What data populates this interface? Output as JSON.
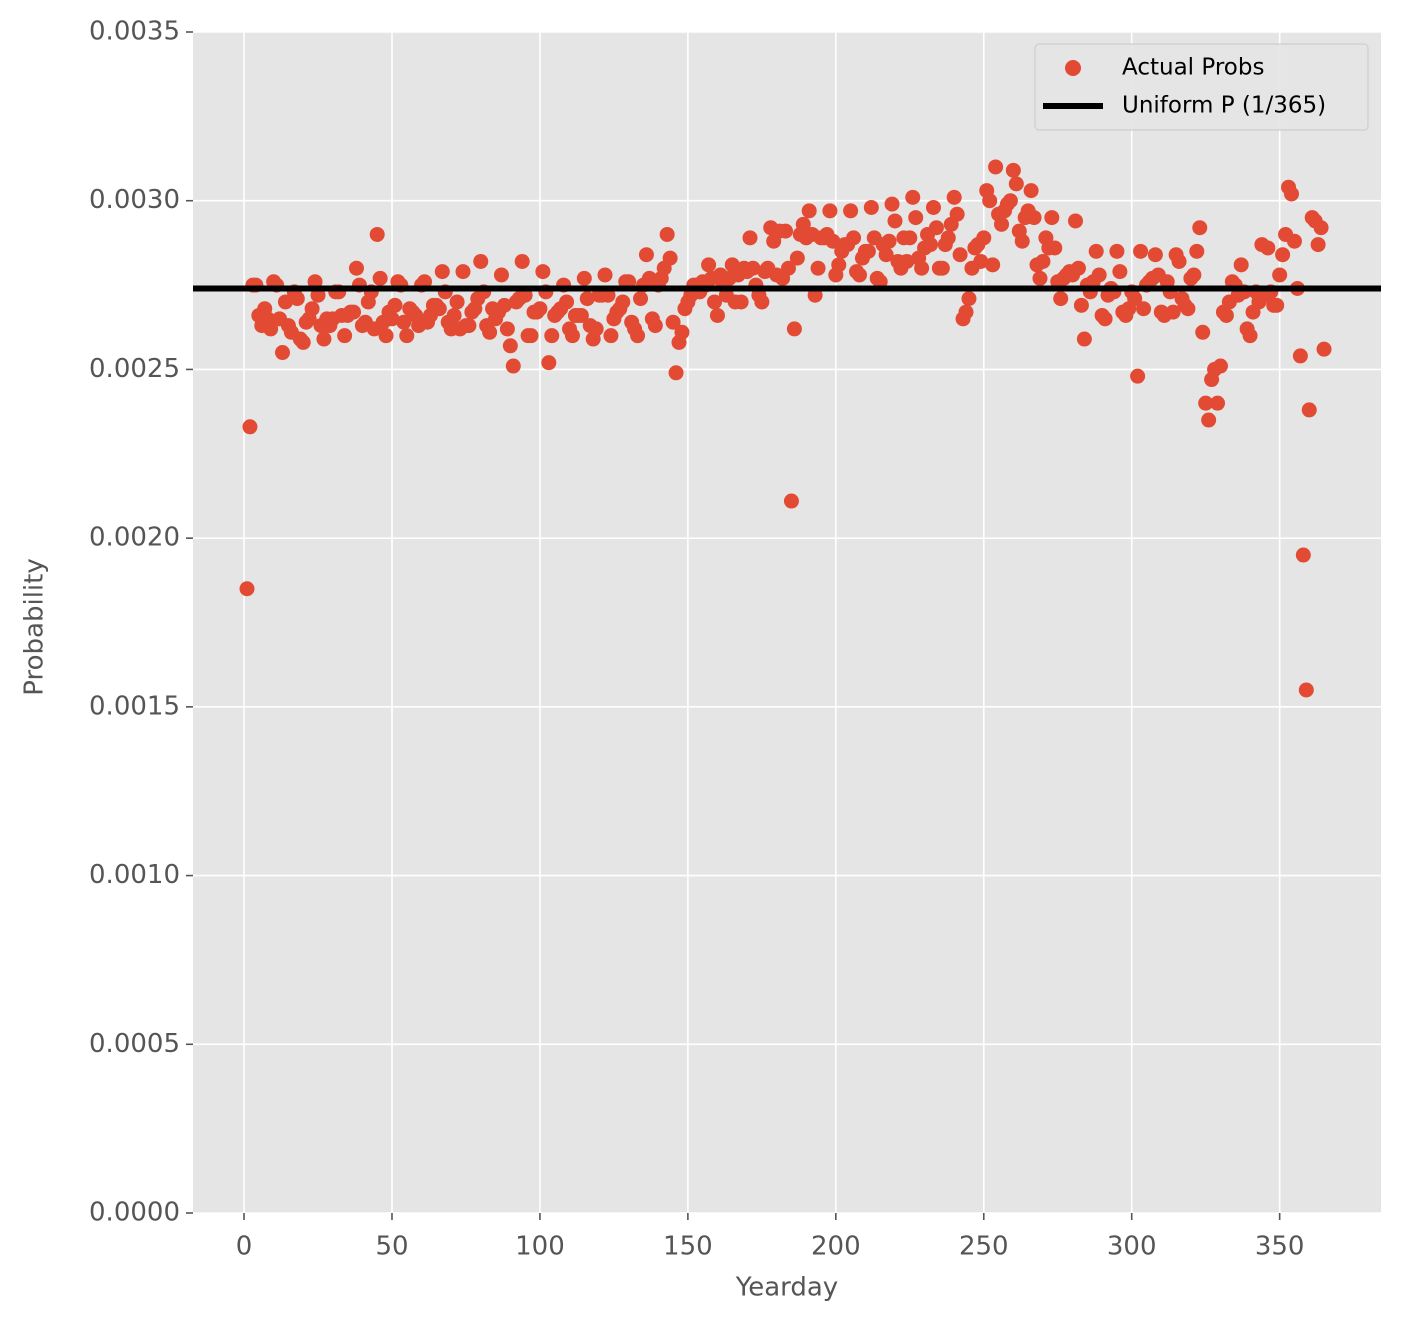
{
  "chart_data": {
    "type": "scatter",
    "x_label": "Yearday",
    "y_label": "Probability",
    "xlim": [
      -17.25,
      384.25
    ],
    "xticks": [
      0,
      50,
      100,
      150,
      200,
      250,
      300,
      350
    ],
    "ylim": [
      0,
      0.0035
    ],
    "yticks": [
      {
        "value": 0,
        "label": "0.0000"
      },
      0.0005,
      {
        "value": 0.001,
        "label": "0.0010"
      },
      0.0015,
      {
        "value": 0.002,
        "label": "0.0020"
      },
      0.0025,
      {
        "value": 0.003,
        "label": "0.0030"
      },
      0.0035
    ],
    "grid": true,
    "legend": "upper right",
    "hline": {
      "name": "Uniform P (1/365)",
      "value": 0.0027397,
      "color": "#000000"
    },
    "series": [
      {
        "name": "Actual Probs",
        "color": "#E24A33",
        "x": [
          1,
          2,
          3,
          4,
          5,
          6,
          7,
          8,
          9,
          10,
          11,
          12,
          13,
          14,
          15,
          16,
          17,
          18,
          19,
          20,
          21,
          22,
          23,
          24,
          25,
          26,
          27,
          28,
          29,
          30,
          31,
          32,
          33,
          34,
          35,
          36,
          37,
          38,
          39,
          40,
          41,
          42,
          43,
          44,
          45,
          46,
          47,
          48,
          49,
          50,
          51,
          52,
          53,
          54,
          55,
          56,
          57,
          58,
          59,
          60,
          61,
          62,
          63,
          64,
          65,
          66,
          67,
          68,
          69,
          70,
          71,
          72,
          73,
          74,
          75,
          76,
          77,
          78,
          79,
          80,
          81,
          82,
          83,
          84,
          85,
          86,
          87,
          88,
          89,
          90,
          91,
          92,
          93,
          94,
          95,
          96,
          97,
          98,
          99,
          100,
          101,
          102,
          103,
          104,
          105,
          106,
          107,
          108,
          109,
          110,
          111,
          112,
          113,
          114,
          115,
          116,
          117,
          118,
          119,
          120,
          121,
          122,
          123,
          124,
          125,
          126,
          127,
          128,
          129,
          130,
          131,
          132,
          133,
          134,
          135,
          136,
          137,
          138,
          139,
          140,
          141,
          142,
          143,
          144,
          145,
          146,
          147,
          148,
          149,
          150,
          151,
          152,
          153,
          154,
          155,
          156,
          157,
          158,
          159,
          160,
          161,
          162,
          163,
          164,
          165,
          166,
          167,
          168,
          169,
          170,
          171,
          172,
          173,
          174,
          175,
          176,
          177,
          178,
          179,
          180,
          181,
          182,
          183,
          184,
          185,
          186,
          187,
          188,
          189,
          190,
          191,
          192,
          193,
          194,
          195,
          196,
          197,
          198,
          199,
          200,
          201,
          202,
          203,
          204,
          205,
          206,
          207,
          208,
          209,
          210,
          211,
          212,
          213,
          214,
          215,
          216,
          217,
          218,
          219,
          220,
          221,
          222,
          223,
          224,
          225,
          226,
          227,
          228,
          229,
          230,
          231,
          232,
          233,
          234,
          235,
          236,
          237,
          238,
          239,
          240,
          241,
          242,
          243,
          244,
          245,
          246,
          247,
          248,
          249,
          250,
          251,
          252,
          253,
          254,
          255,
          256,
          257,
          258,
          259,
          260,
          261,
          262,
          263,
          264,
          265,
          266,
          267,
          268,
          269,
          270,
          271,
          272,
          273,
          274,
          275,
          276,
          277,
          278,
          279,
          280,
          281,
          282,
          283,
          284,
          285,
          286,
          287,
          288,
          289,
          290,
          291,
          292,
          293,
          294,
          295,
          296,
          297,
          298,
          299,
          300,
          301,
          302,
          303,
          304,
          305,
          306,
          307,
          308,
          309,
          310,
          311,
          312,
          313,
          314,
          315,
          316,
          317,
          318,
          319,
          320,
          321,
          322,
          323,
          324,
          325,
          326,
          327,
          328,
          329,
          330,
          331,
          332,
          333,
          334,
          335,
          336,
          337,
          338,
          339,
          340,
          341,
          342,
          343,
          344,
          345,
          346,
          347,
          348,
          349,
          350,
          351,
          352,
          353,
          354,
          355,
          356,
          357,
          358,
          359,
          360,
          361,
          362,
          363,
          364,
          365
        ],
        "values": [
          0.00185,
          0.00233,
          0.00275,
          0.00275,
          0.00266,
          0.00263,
          0.00268,
          0.00265,
          0.00262,
          0.00276,
          0.00275,
          0.00265,
          0.00255,
          0.0027,
          0.00263,
          0.00261,
          0.00273,
          0.00271,
          0.00259,
          0.00258,
          0.00264,
          0.00265,
          0.00268,
          0.00276,
          0.00272,
          0.00263,
          0.00259,
          0.00265,
          0.00263,
          0.00265,
          0.00273,
          0.00273,
          0.00266,
          0.0026,
          0.00266,
          0.00267,
          0.00267,
          0.0028,
          0.00275,
          0.00263,
          0.00264,
          0.0027,
          0.00273,
          0.00262,
          0.0029,
          0.00277,
          0.00264,
          0.0026,
          0.00267,
          0.00265,
          0.00269,
          0.00276,
          0.00275,
          0.00264,
          0.0026,
          0.00268,
          0.00267,
          0.00266,
          0.00263,
          0.00275,
          0.00276,
          0.00264,
          0.00266,
          0.00269,
          0.00269,
          0.00268,
          0.00279,
          0.00273,
          0.00264,
          0.00262,
          0.00266,
          0.0027,
          0.00262,
          0.00279,
          0.00263,
          0.00263,
          0.00267,
          0.00268,
          0.00271,
          0.00282,
          0.00273,
          0.00263,
          0.00261,
          0.00268,
          0.00265,
          0.00267,
          0.00278,
          0.00269,
          0.00262,
          0.00257,
          0.00251,
          0.0027,
          0.00271,
          0.00282,
          0.00272,
          0.0026,
          0.0026,
          0.00267,
          0.00267,
          0.00268,
          0.00279,
          0.00273,
          0.00252,
          0.0026,
          0.00266,
          0.00267,
          0.00268,
          0.00275,
          0.0027,
          0.00262,
          0.0026,
          0.00266,
          0.00266,
          0.00266,
          0.00277,
          0.00271,
          0.00263,
          0.00259,
          0.00262,
          0.00272,
          0.00272,
          0.00278,
          0.00272,
          0.0026,
          0.00265,
          0.00267,
          0.00268,
          0.0027,
          0.00276,
          0.00276,
          0.00264,
          0.00262,
          0.0026,
          0.00271,
          0.00275,
          0.00284,
          0.00277,
          0.00265,
          0.00263,
          0.00275,
          0.00277,
          0.0028,
          0.0029,
          0.00283,
          0.00264,
          0.00249,
          0.00258,
          0.00261,
          0.00268,
          0.0027,
          0.00272,
          0.00275,
          0.00275,
          0.00273,
          0.00276,
          0.00275,
          0.00281,
          0.00277,
          0.0027,
          0.00266,
          0.00278,
          0.00275,
          0.00272,
          0.00277,
          0.00281,
          0.0027,
          0.00278,
          0.0027,
          0.0028,
          0.00279,
          0.00289,
          0.0028,
          0.00275,
          0.00272,
          0.0027,
          0.00279,
          0.0028,
          0.00292,
          0.00288,
          0.00278,
          0.00291,
          0.00277,
          0.00291,
          0.0028,
          0.00211,
          0.00262,
          0.00283,
          0.0029,
          0.00293,
          0.00289,
          0.00297,
          0.0029,
          0.00272,
          0.0028,
          0.00289,
          0.00289,
          0.0029,
          0.00297,
          0.00288,
          0.00278,
          0.00281,
          0.00285,
          0.00287,
          0.00287,
          0.00297,
          0.00289,
          0.00279,
          0.00278,
          0.00283,
          0.00285,
          0.00285,
          0.00298,
          0.00289,
          0.00277,
          0.00276,
          0.00287,
          0.00284,
          0.00288,
          0.00299,
          0.00294,
          0.00282,
          0.0028,
          0.00289,
          0.00282,
          0.00289,
          0.00301,
          0.00295,
          0.00283,
          0.0028,
          0.00286,
          0.0029,
          0.00287,
          0.00298,
          0.00292,
          0.0028,
          0.0028,
          0.00287,
          0.00289,
          0.00293,
          0.00301,
          0.00296,
          0.00284,
          0.00265,
          0.00267,
          0.00271,
          0.0028,
          0.00286,
          0.00287,
          0.00282,
          0.00289,
          0.00303,
          0.003,
          0.00281,
          0.0031,
          0.00296,
          0.00293,
          0.00297,
          0.00299,
          0.003,
          0.00309,
          0.00305,
          0.00291,
          0.00288,
          0.00295,
          0.00297,
          0.00303,
          0.00295,
          0.00281,
          0.00277,
          0.00282,
          0.00289,
          0.00286,
          0.00295,
          0.00286,
          0.00276,
          0.00271,
          0.00277,
          0.00278,
          0.00279,
          0.00278,
          0.00294,
          0.0028,
          0.00269,
          0.00259,
          0.00275,
          0.00273,
          0.00276,
          0.00285,
          0.00278,
          0.00266,
          0.00265,
          0.00272,
          0.00274,
          0.00273,
          0.00285,
          0.00279,
          0.00267,
          0.00266,
          0.00268,
          0.00273,
          0.00271,
          0.00248,
          0.00285,
          0.00268,
          0.00275,
          0.00276,
          0.00277,
          0.00284,
          0.00278,
          0.00267,
          0.00266,
          0.00276,
          0.00273,
          0.00267,
          0.00284,
          0.00282,
          0.00271,
          0.00269,
          0.00268,
          0.00277,
          0.00278,
          0.00285,
          0.00292,
          0.00261,
          0.0024,
          0.00235,
          0.00247,
          0.0025,
          0.0024,
          0.00251,
          0.00267,
          0.00266,
          0.0027,
          0.00276,
          0.00275,
          0.00272,
          0.00281,
          0.00273,
          0.00262,
          0.0026,
          0.00267,
          0.00273,
          0.0027,
          0.00287,
          0.00272,
          0.00286,
          0.00273,
          0.00269,
          0.00269,
          0.00278,
          0.00284,
          0.0029,
          0.00304,
          0.00302,
          0.00288,
          0.00274,
          0.00254,
          0.00195,
          0.00155,
          0.00238,
          0.00295,
          0.00294,
          0.00287,
          0.00292,
          0.00256
        ]
      }
    ]
  }
}
